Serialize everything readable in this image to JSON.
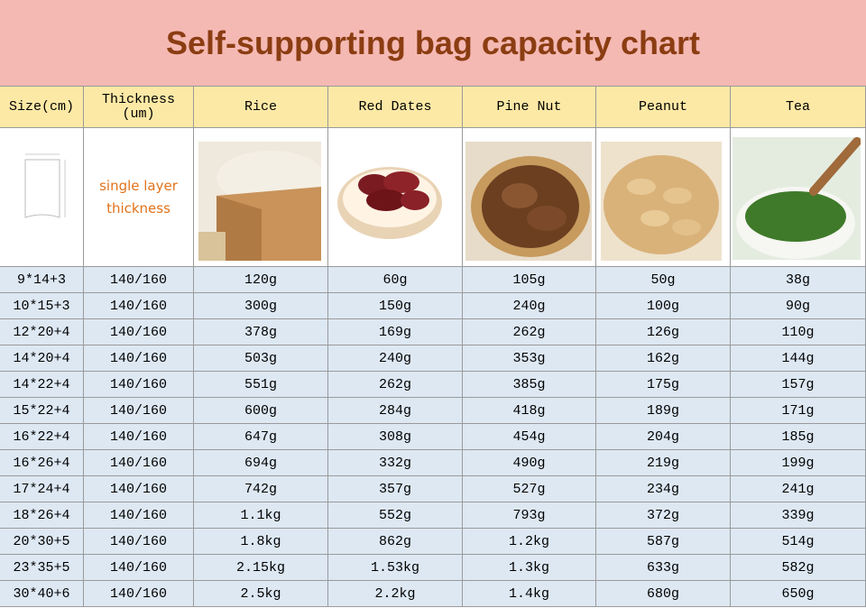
{
  "title": "Self-supporting bag capacity chart",
  "table": {
    "header": [
      "Size(cm)",
      "Thickness (um)",
      "Rice",
      "Red Dates",
      "Pine Nut",
      "Peanut",
      "Tea"
    ],
    "thickness_note": "single layer thickness",
    "rows": [
      [
        "9*14+3",
        "140/160",
        "120g",
        "60g",
        "105g",
        "50g",
        "38g"
      ],
      [
        "10*15+3",
        "140/160",
        "300g",
        "150g",
        "240g",
        "100g",
        "90g"
      ],
      [
        "12*20+4",
        "140/160",
        "378g",
        "169g",
        "262g",
        "126g",
        "110g"
      ],
      [
        "14*20+4",
        "140/160",
        "503g",
        "240g",
        "353g",
        "162g",
        "144g"
      ],
      [
        "14*22+4",
        "140/160",
        "551g",
        "262g",
        "385g",
        "175g",
        "157g"
      ],
      [
        "15*22+4",
        "140/160",
        "600g",
        "284g",
        "418g",
        "189g",
        "171g"
      ],
      [
        "16*22+4",
        "140/160",
        "647g",
        "308g",
        "454g",
        "204g",
        "185g"
      ],
      [
        "16*26+4",
        "140/160",
        "694g",
        "332g",
        "490g",
        "219g",
        "199g"
      ],
      [
        "17*24+4",
        "140/160",
        "742g",
        "357g",
        "527g",
        "234g",
        "241g"
      ],
      [
        "18*26+4",
        "140/160",
        "1.1kg",
        "552g",
        "793g",
        "372g",
        "339g"
      ],
      [
        "20*30+5",
        "140/160",
        "1.8kg",
        "862g",
        "1.2kg",
        "587g",
        "514g"
      ],
      [
        "23*35+5",
        "140/160",
        "2.15kg",
        "1.53kg",
        "1.3kg",
        "633g",
        "582g"
      ],
      [
        "30*40+6",
        "140/160",
        "2.5kg",
        "2.2kg",
        "1.4kg",
        "680g",
        "650g"
      ]
    ]
  }
}
